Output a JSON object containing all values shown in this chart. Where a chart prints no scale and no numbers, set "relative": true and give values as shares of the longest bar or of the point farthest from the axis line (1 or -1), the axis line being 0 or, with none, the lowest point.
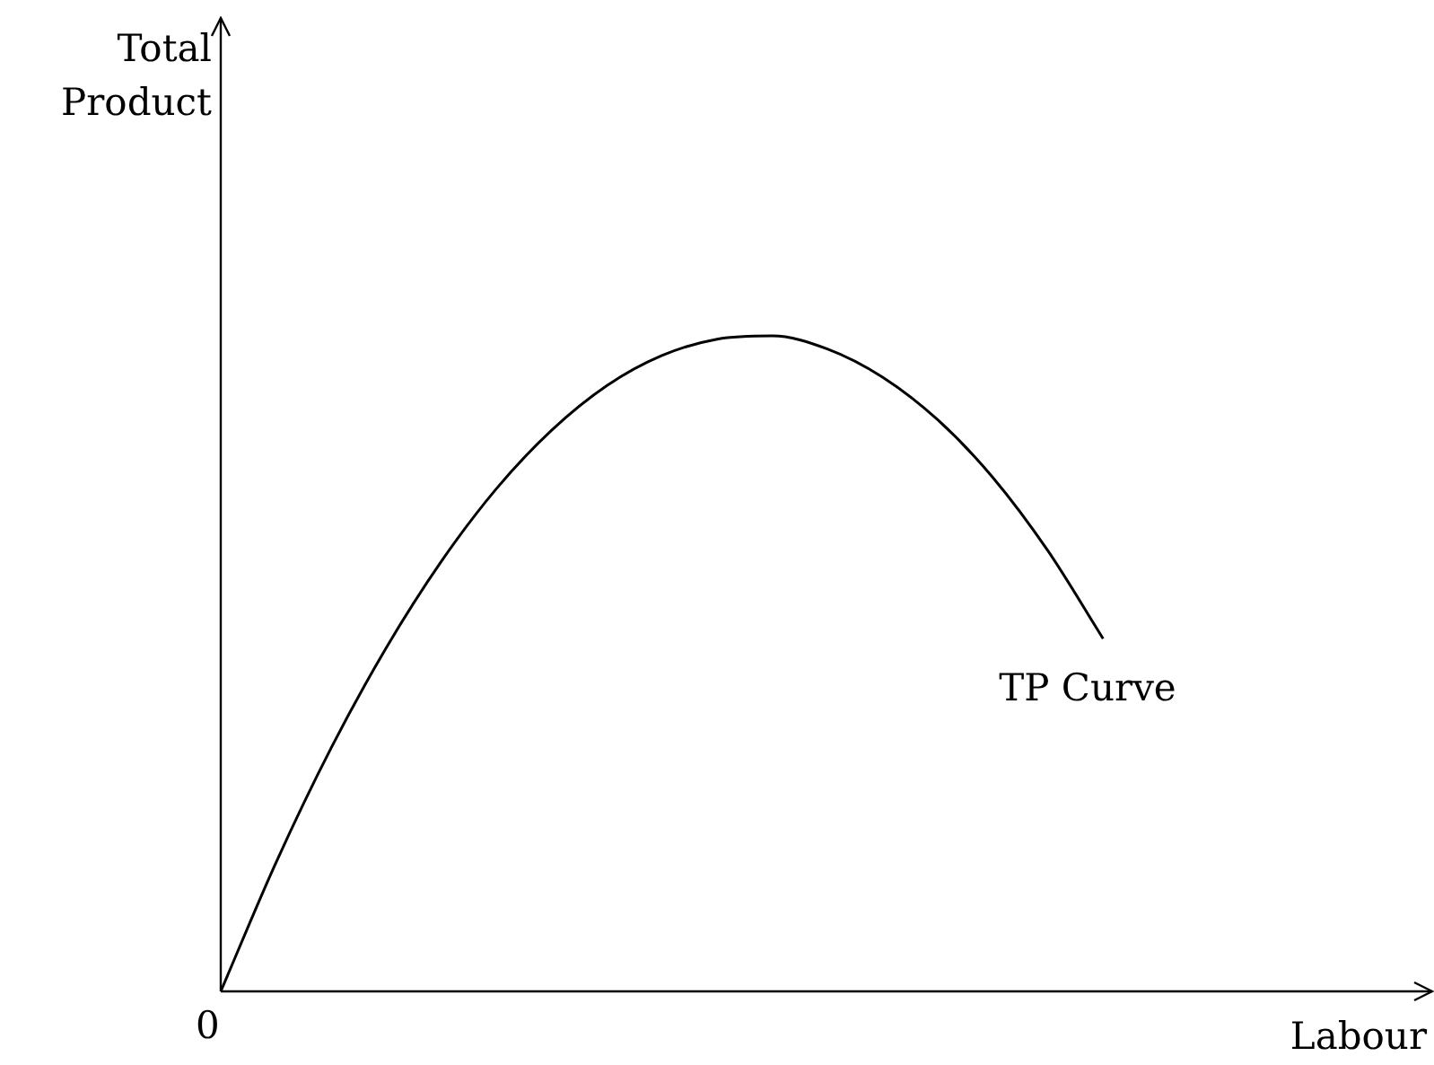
{
  "chart_data": {
    "type": "line",
    "relative": true,
    "xlabel": "Labour",
    "color": "#000000",
    "annotations": [
      "TP Curve",
      "0",
      "Total Product"
    ],
    "categories": [
      null,
      null,
      null,
      null,
      null,
      null,
      null,
      null,
      null,
      null,
      null,
      null,
      null,
      null,
      null,
      null,
      null,
      null,
      null,
      null,
      null,
      null,
      null
    ],
    "values": [
      0,
      0.196,
      0.371,
      0.524,
      0.656,
      0.767,
      0.856,
      0.924,
      0.97,
      0.995,
      1,
      0.98,
      0.937,
      0.872,
      0.784,
      0.672,
      0.538,
      null,
      null,
      null,
      null,
      null,
      null
    ],
    "marker": "none"
  }
}
